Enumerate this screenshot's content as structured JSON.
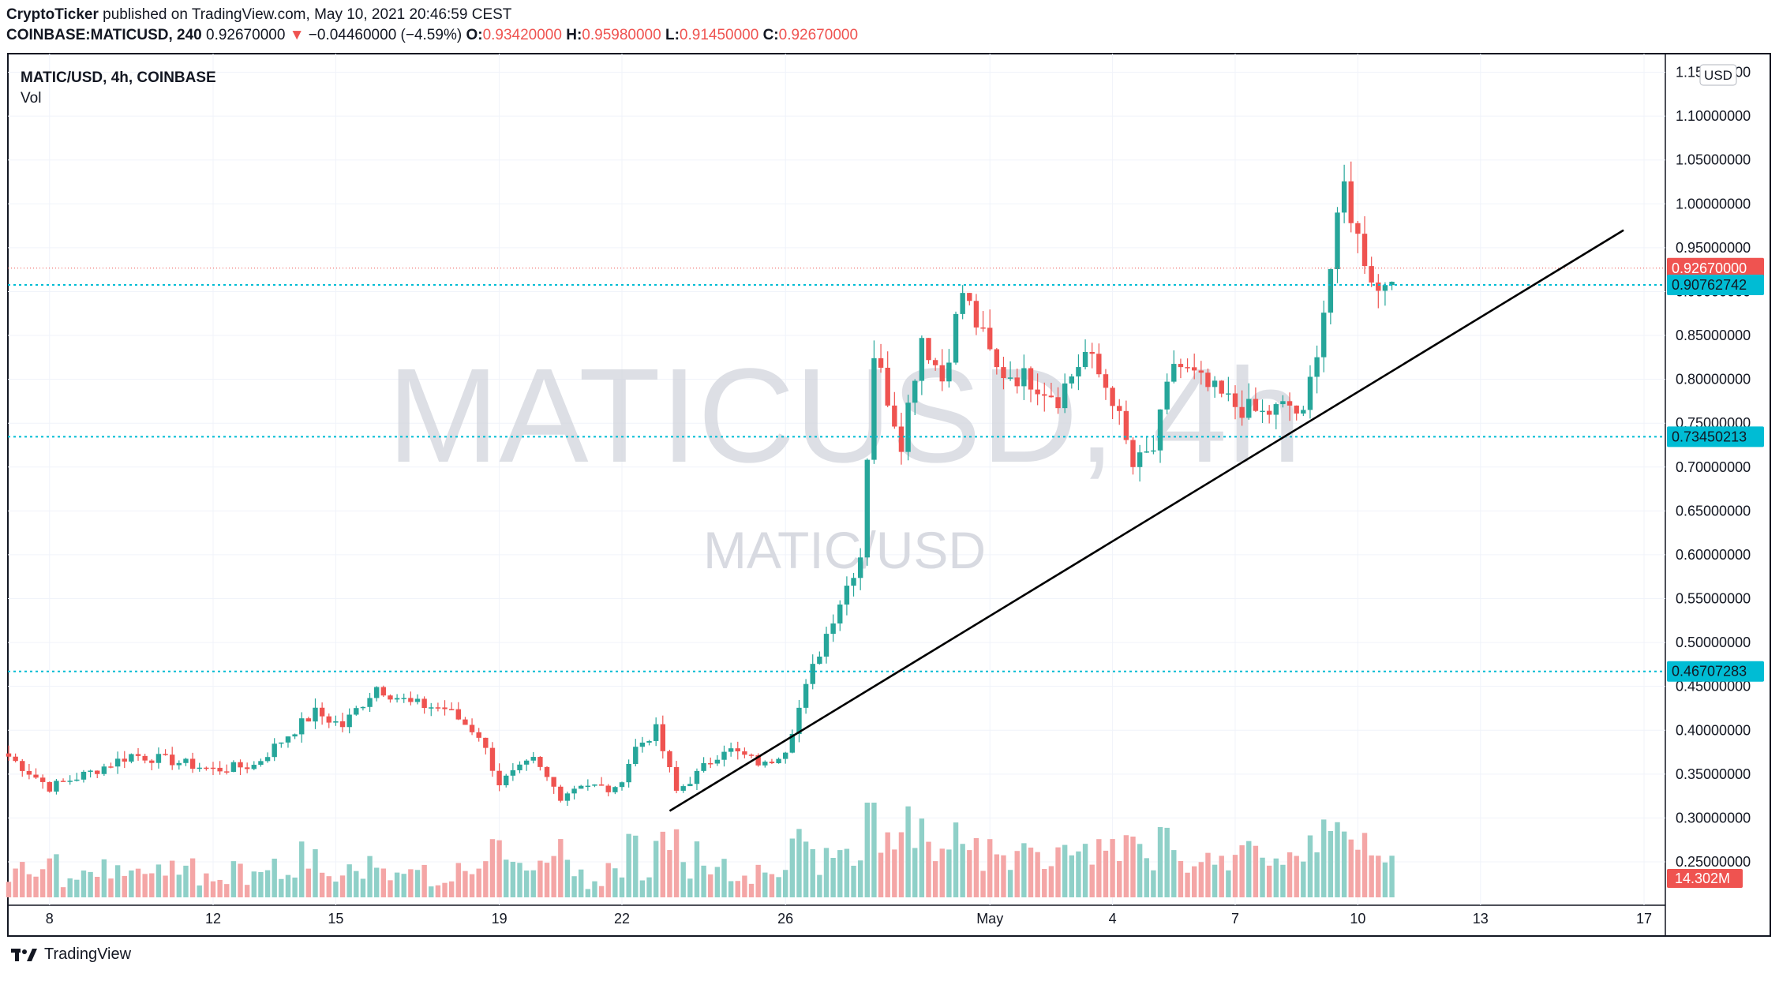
{
  "header": {
    "publisher": "CryptoTicker",
    "published_text": "published on TradingView.com, May 10, 2021 20:46:59 CEST",
    "symbol_line": "COINBASE:MATICUSD, 240",
    "last": "0.92670000",
    "change": "−0.04460000 (−4.59%)",
    "o_label": "O:",
    "o": "0.93420000",
    "h_label": "H:",
    "h": "0.95980000",
    "l_label": "L:",
    "l": "0.91450000",
    "c_label": "C:",
    "c": "0.92670000"
  },
  "legend": {
    "title": "MATIC/USD, 4h, COINBASE",
    "vol": "Vol"
  },
  "watermark": {
    "big": "MATICUSD, 4h",
    "small": "MATIC/USD"
  },
  "currency_badge": "USD",
  "footer": {
    "brand": "TradingView"
  },
  "colors": {
    "up": "#26a69a",
    "down": "#ef5350",
    "up_vol": "#8fd0c8",
    "down_vol": "#f4a6a6",
    "hline": "#00bcd4",
    "trend": "#000000"
  },
  "chart_data": {
    "type": "candlestick",
    "y_axis": {
      "ticks": [
        "1.15000000",
        "1.10000000",
        "1.05000000",
        "1.00000000",
        "0.95000000",
        "0.90000000",
        "0.85000000",
        "0.80000000",
        "0.75000000",
        "0.70000000",
        "0.65000000",
        "0.60000000",
        "0.55000000",
        "0.50000000",
        "0.45000000",
        "0.40000000",
        "0.35000000",
        "0.30000000",
        "0.25000000"
      ],
      "range": [
        0.232,
        1.155
      ]
    },
    "x_axis": {
      "ticks": [
        "8",
        "12",
        "15",
        "19",
        "22",
        "26",
        "May",
        "4",
        "7",
        "10",
        "13",
        "17"
      ]
    },
    "price_labels": [
      {
        "value": 0.9267,
        "text": "0.92670000",
        "kind": "last"
      },
      {
        "value": 0.90762742,
        "text": "0.90762742",
        "kind": "line"
      },
      {
        "value": 0.73450213,
        "text": "0.73450213",
        "kind": "line"
      },
      {
        "value": 0.46707283,
        "text": "0.46707283",
        "kind": "line"
      }
    ],
    "volume_label": "14.302M",
    "horizontal_lines": [
      0.90762742,
      0.73450213,
      0.46707283
    ],
    "trendline": {
      "from": {
        "date": "2021-04-23 04:00",
        "price": 0.308
      },
      "to": {
        "date": "2021-05-16 12:00",
        "price": 0.97
      }
    },
    "ohlc_anchor_closes": [
      [
        "2021-04-07 00:00",
        0.37
      ],
      [
        "2021-04-08 00:00",
        0.335
      ],
      [
        "2021-04-09 00:00",
        0.352
      ],
      [
        "2021-04-10 00:00",
        0.372
      ],
      [
        "2021-04-11 00:00",
        0.365
      ],
      [
        "2021-04-12 00:00",
        0.355
      ],
      [
        "2021-04-13 00:00",
        0.36
      ],
      [
        "2021-04-13 20:00",
        0.395
      ],
      [
        "2021-04-14 12:00",
        0.42
      ],
      [
        "2021-04-15 04:00",
        0.405
      ],
      [
        "2021-04-16 00:00",
        0.45
      ],
      [
        "2021-04-16 20:00",
        0.43
      ],
      [
        "2021-04-17 16:00",
        0.425
      ],
      [
        "2021-04-18 12:00",
        0.395
      ],
      [
        "2021-04-19 00:00",
        0.34
      ],
      [
        "2021-04-19 20:00",
        0.365
      ],
      [
        "2021-04-20 12:00",
        0.325
      ],
      [
        "2021-04-21 00:00",
        0.34
      ],
      [
        "2021-04-21 20:00",
        0.33
      ],
      [
        "2021-04-22 08:00",
        0.38
      ],
      [
        "2021-04-22 20:00",
        0.4
      ],
      [
        "2021-04-23 08:00",
        0.33
      ],
      [
        "2021-04-23 20:00",
        0.35
      ],
      [
        "2021-04-24 12:00",
        0.38
      ],
      [
        "2021-04-25 12:00",
        0.36
      ],
      [
        "2021-04-26 00:00",
        0.38
      ],
      [
        "2021-04-26 16:00",
        0.47
      ],
      [
        "2021-04-27 04:00",
        0.53
      ],
      [
        "2021-04-27 20:00",
        0.6
      ],
      [
        "2021-04-28 04:00",
        0.83
      ],
      [
        "2021-04-28 20:00",
        0.73
      ],
      [
        "2021-04-29 08:00",
        0.85
      ],
      [
        "2021-04-29 20:00",
        0.8
      ],
      [
        "2021-04-30 08:00",
        0.9
      ],
      [
        "2021-05-01 04:00",
        0.81
      ],
      [
        "2021-05-02 00:00",
        0.8
      ],
      [
        "2021-05-02 16:00",
        0.78
      ],
      [
        "2021-05-03 08:00",
        0.83
      ],
      [
        "2021-05-04 00:00",
        0.78
      ],
      [
        "2021-05-04 12:00",
        0.7
      ],
      [
        "2021-05-05 00:00",
        0.72
      ],
      [
        "2021-05-05 12:00",
        0.82
      ],
      [
        "2021-05-06 08:00",
        0.79
      ],
      [
        "2021-05-07 00:00",
        0.77
      ],
      [
        "2021-05-07 16:00",
        0.76
      ],
      [
        "2021-05-08 08:00",
        0.77
      ],
      [
        "2021-05-08 16:00",
        0.755
      ],
      [
        "2021-05-09 04:00",
        0.88
      ],
      [
        "2021-05-09 16:00",
        1.02
      ],
      [
        "2021-05-10 00:00",
        0.96
      ],
      [
        "2021-05-10 12:00",
        0.9
      ],
      [
        "2021-05-10 20:00",
        0.9267
      ]
    ]
  }
}
